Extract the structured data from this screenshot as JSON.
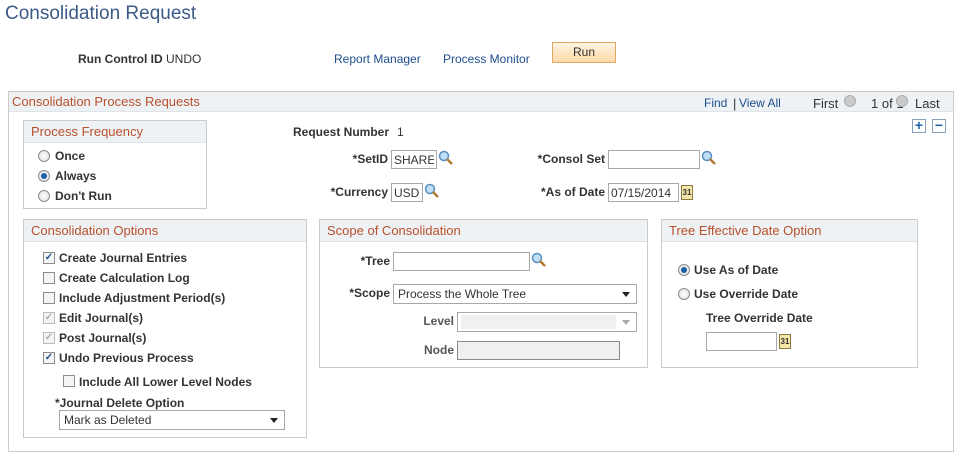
{
  "page": {
    "title": "Consolidation Request"
  },
  "header": {
    "run_control_label": "Run Control ID",
    "run_control_value": "UNDO",
    "report_manager": "Report Manager",
    "process_monitor": "Process Monitor",
    "run_button": "Run"
  },
  "grid": {
    "title": "Consolidation Process Requests",
    "find": "Find",
    "separator": "|",
    "view_all": "View All",
    "first": "First",
    "count": "1 of 1",
    "last": "Last",
    "add": "+",
    "remove": "−"
  },
  "request": {
    "number_label": "Request Number",
    "number_value": "1",
    "setid_label": "*SetID",
    "setid_value": "SHARE",
    "currency_label": "*Currency",
    "currency_value": "USD",
    "consol_set_label": "*Consol Set",
    "consol_set_value": "",
    "as_of_date_label": "*As of Date",
    "as_of_date_value": "07/15/2014"
  },
  "process_frequency": {
    "title": "Process Frequency",
    "options": [
      {
        "label": "Once",
        "selected": false
      },
      {
        "label": "Always",
        "selected": true
      },
      {
        "label": "Don't Run",
        "selected": false
      }
    ]
  },
  "consolidation_options": {
    "title": "Consolidation Options",
    "checkboxes": [
      {
        "label": "Create Journal Entries",
        "checked": true,
        "disabled": false
      },
      {
        "label": "Create Calculation Log",
        "checked": false,
        "disabled": false
      },
      {
        "label": "Include Adjustment Period(s)",
        "checked": false,
        "disabled": false
      },
      {
        "label": "Edit Journal(s)",
        "checked": true,
        "disabled": true
      },
      {
        "label": "Post Journal(s)",
        "checked": true,
        "disabled": true
      },
      {
        "label": "Undo Previous Process",
        "checked": true,
        "disabled": false
      }
    ],
    "include_lower": {
      "label": "Include All Lower Level Nodes",
      "checked": false
    },
    "journal_delete_label": "*Journal Delete Option",
    "journal_delete_value": "Mark as Deleted"
  },
  "scope": {
    "title": "Scope of Consolidation",
    "tree_label": "*Tree",
    "tree_value": "",
    "scope_label": "*Scope",
    "scope_value": "Process the Whole Tree",
    "level_label": "Level",
    "level_value": "",
    "node_label": "Node",
    "node_value": ""
  },
  "tree_effdt": {
    "title": "Tree Effective Date Option",
    "options": [
      {
        "label": "Use As of Date",
        "selected": true
      },
      {
        "label": "Use Override Date",
        "selected": false
      }
    ],
    "override_label": "Tree Override Date",
    "override_value": ""
  },
  "icons": {
    "lookup": "magnifier-icon",
    "calendar": "calendar-icon",
    "calendar_text": "31"
  }
}
